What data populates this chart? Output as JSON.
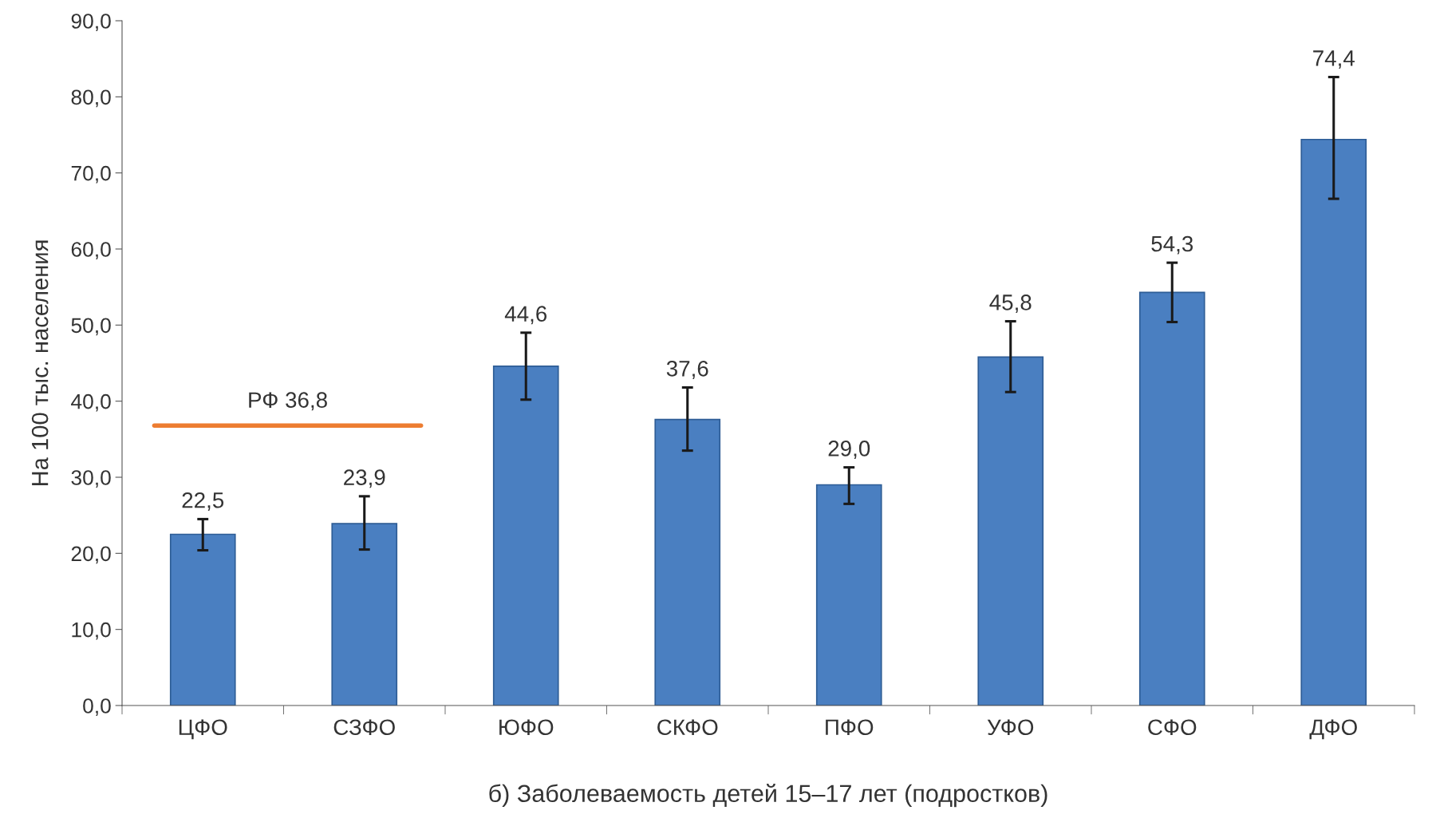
{
  "chart_data": {
    "type": "bar",
    "xlabel": "б) Заболеваемость детей 15–17 лет (подростков)",
    "ylabel": "На 100 тыс. населения",
    "categories": [
      "ЦФО",
      "СЗФО",
      "ЮФО",
      "СКФО",
      "ПФО",
      "УФО",
      "СФО",
      "ДФО"
    ],
    "values": [
      22.5,
      23.9,
      44.6,
      37.6,
      29.0,
      45.8,
      54.3,
      74.4
    ],
    "value_labels": [
      "22,5",
      "23,9",
      "44,6",
      "37,6",
      "29,0",
      "45,8",
      "54,3",
      "74,4"
    ],
    "errors": [
      [
        20.4,
        24.5
      ],
      [
        20.5,
        27.5
      ],
      [
        40.2,
        49.0
      ],
      [
        33.5,
        41.8
      ],
      [
        26.5,
        31.3
      ],
      [
        41.2,
        50.5
      ],
      [
        50.4,
        58.2
      ],
      [
        66.6,
        82.6
      ]
    ],
    "color": "#4a7fc1",
    "ylim": [
      0,
      90
    ],
    "yticks": [
      {
        "value": 0,
        "label": "0,0"
      },
      {
        "value": 10,
        "label": "10,0"
      },
      {
        "value": 20,
        "label": "20,0"
      },
      {
        "value": 30,
        "label": "30,0"
      },
      {
        "value": 40,
        "label": "40,0"
      },
      {
        "value": 50,
        "label": "50,0"
      },
      {
        "value": 60,
        "label": "60,0"
      },
      {
        "value": 70,
        "label": "70,0"
      },
      {
        "value": 80,
        "label": "80,0"
      },
      {
        "value": 90,
        "label": "90,0"
      }
    ],
    "ref_lines": [
      {
        "axis": "y",
        "value": 36.8,
        "label": "РФ 36,8",
        "color": "#ed7d31"
      }
    ],
    "grid": false,
    "legend": false
  }
}
